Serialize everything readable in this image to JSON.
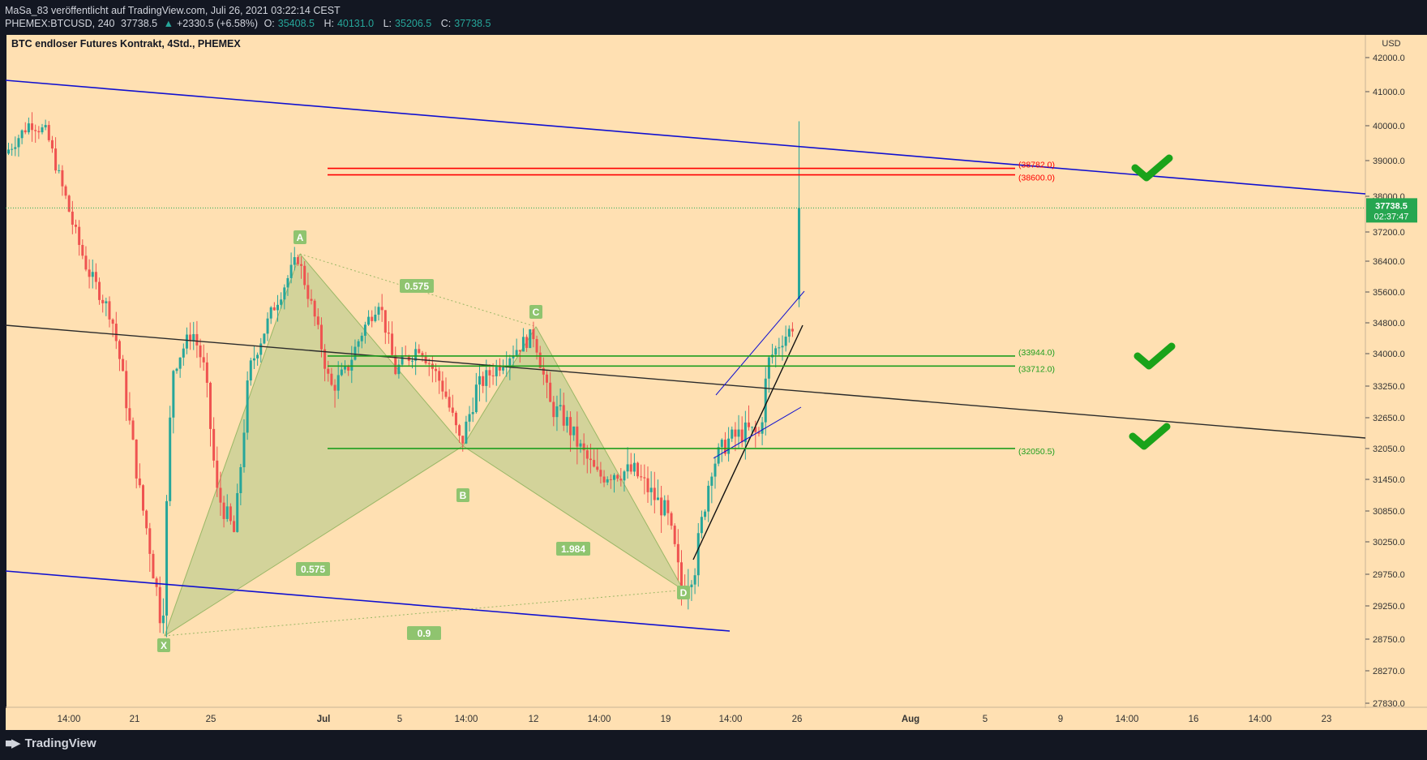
{
  "header": {
    "publish_info": "MaSa_83 veröffentlicht auf TradingView.com, Juli 26, 2021 03:22:14 CEST",
    "symbol": "PHEMEX:BTCUSD, 240",
    "last": "37738.5",
    "change_arrow": "▲",
    "change": "+2330.5 (+6.58%)",
    "o_label": "O:",
    "o": "35408.5",
    "h_label": "H:",
    "h": "40131.0",
    "l_label": "L:",
    "l": "35206.5",
    "c_label": "C:",
    "c": "37738.5"
  },
  "chart_data": {
    "type": "candlestick",
    "title": "BTC endloser Futures Kontrakt, 4Std., PHEMEX",
    "currency": "USD",
    "price_ticks": [
      "42000.0",
      "41000.0",
      "40000.0",
      "39000.0",
      "38000.0",
      "37200.0",
      "36400.0",
      "35600.0",
      "34800.0",
      "34000.0",
      "33250.0",
      "32650.0",
      "32050.0",
      "31450.0",
      "30850.0",
      "30250.0",
      "29750.0",
      "29250.0",
      "28750.0",
      "28270.0",
      "27830.0"
    ],
    "price_tick_values": [
      42000,
      41000,
      40000,
      39000,
      38000,
      37200,
      36400,
      35600,
      34800,
      34000,
      33250,
      32650,
      32050,
      31450,
      30850,
      30250,
      29750,
      29250,
      28750,
      28270,
      27830
    ],
    "time_ticks": [
      "14:00",
      "21",
      "25",
      "Jul",
      "5",
      "14:00",
      "12",
      "14:00",
      "19",
      "14:00",
      "26",
      "Aug",
      "5",
      "9",
      "14:00",
      "16",
      "14:00",
      "23"
    ],
    "last_price_label": "37738.5",
    "countdown_label": "02:37:47",
    "last_price": 37738.5,
    "levels": [
      {
        "label": "(38782.0)",
        "value": 38782.0,
        "color": "#ff0000"
      },
      {
        "label": "(38600.0)",
        "value": 38600.0,
        "color": "#ff0000"
      },
      {
        "label": "(33944.0)",
        "value": 33944.0,
        "color": "#1e9e1e"
      },
      {
        "label": "(33712.0)",
        "value": 33712.0,
        "color": "#1e9e1e"
      },
      {
        "label": "(32050.5)",
        "value": 32050.5,
        "color": "#1e9e1e"
      }
    ],
    "pattern_points": [
      {
        "label": "X",
        "value": 28800
      },
      {
        "label": "A",
        "value": 36600
      },
      {
        "label": "B",
        "value": 32100
      },
      {
        "label": "C",
        "value": 34700
      },
      {
        "label": "D",
        "value": 29500
      }
    ],
    "ratios": [
      "0.575",
      "0.575",
      "1.984",
      "0.9"
    ],
    "colors": {
      "background": "#ffe0b2",
      "up_candle": "#26a69a",
      "down_candle": "#ef5350",
      "channel_line": "#1010d0",
      "trend_line": "#2b2b2b",
      "pattern_fill": "#b5c98a",
      "pattern_label": "#8fc46f",
      "check_mark": "#1aa31a",
      "price_badge": "#26a650"
    }
  },
  "footer": {
    "brand": "TradingView",
    "logo_icon": "tradingview-logo-icon"
  }
}
